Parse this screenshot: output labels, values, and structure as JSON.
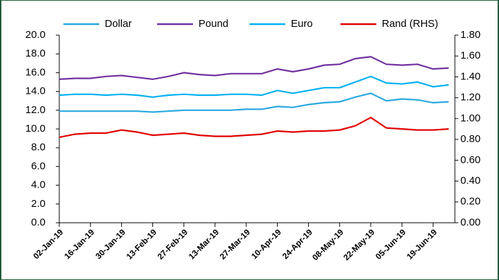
{
  "chart_data": {
    "type": "line",
    "categories": [
      "02-Jan-19",
      null,
      "16-Jan-19",
      null,
      "30-Jan-19",
      null,
      "13-Feb-19",
      null,
      "27-Feb-19",
      null,
      "13-Mar-19",
      null,
      "27-Mar-19",
      null,
      "10-Apr-19",
      null,
      "24-Apr-19",
      null,
      "08-May-19",
      null,
      "22-May-19",
      null,
      "05-Jun-19",
      null,
      "19-Jun-19",
      null
    ],
    "series": [
      {
        "name": "Dollar",
        "color": "#29a8e0",
        "values": [
          11.9,
          11.9,
          11.9,
          11.9,
          11.9,
          11.9,
          11.8,
          11.9,
          12.0,
          12.0,
          12.0,
          12.0,
          12.1,
          12.1,
          12.4,
          12.3,
          12.6,
          12.8,
          12.9,
          13.4,
          13.8,
          13.0,
          13.2,
          13.1,
          12.8,
          12.9
        ]
      },
      {
        "name": "Pound",
        "color": "#7030a0",
        "values": [
          15.3,
          15.4,
          15.4,
          15.6,
          15.7,
          15.5,
          15.3,
          15.6,
          16.0,
          15.8,
          15.7,
          15.9,
          15.9,
          15.9,
          16.4,
          16.1,
          16.4,
          16.8,
          16.9,
          17.5,
          17.7,
          16.9,
          16.8,
          16.9,
          16.4,
          16.5
        ]
      },
      {
        "name": "Euro",
        "color": "#00b0f0",
        "values": [
          13.6,
          13.7,
          13.7,
          13.6,
          13.7,
          13.6,
          13.4,
          13.6,
          13.7,
          13.6,
          13.6,
          13.7,
          13.7,
          13.6,
          14.1,
          13.8,
          14.1,
          14.4,
          14.4,
          15.0,
          15.6,
          14.9,
          14.8,
          15.0,
          14.5,
          14.7
        ]
      },
      {
        "name": "Rand (RHS)",
        "color": "#e00000",
        "axis": "y2",
        "values": [
          0.82,
          0.85,
          0.86,
          0.86,
          0.89,
          0.87,
          0.84,
          0.85,
          0.86,
          0.84,
          0.83,
          0.83,
          0.84,
          0.85,
          0.88,
          0.87,
          0.88,
          0.88,
          0.89,
          0.93,
          1.01,
          0.91,
          0.9,
          0.89,
          0.89,
          0.9
        ]
      }
    ],
    "ylim": [
      0,
      20
    ],
    "yticks": [
      {
        "value": 0,
        "label": "0.0"
      },
      {
        "value": 2,
        "label": "2.0"
      },
      {
        "value": 4,
        "label": "4.0"
      },
      {
        "value": 6,
        "label": "6.0"
      },
      {
        "value": 8,
        "label": "8.0"
      },
      {
        "value": 10,
        "label": "10.0"
      },
      {
        "value": 12,
        "label": "12.0"
      },
      {
        "value": 14,
        "label": "14.0"
      },
      {
        "value": 16,
        "label": "16.0"
      },
      {
        "value": 18,
        "label": "18.0"
      },
      {
        "value": 20,
        "label": "20.0"
      }
    ],
    "y2lim": [
      0,
      1.8
    ],
    "y2ticks": [
      {
        "value": 0,
        "label": "0.00"
      },
      {
        "value": 0.2,
        "label": "0.20"
      },
      {
        "value": 0.4,
        "label": "0.40"
      },
      {
        "value": 0.6,
        "label": "0.60"
      },
      {
        "value": 0.8,
        "label": "0.80"
      },
      {
        "value": 1,
        "label": "1.00"
      },
      {
        "value": 1.2,
        "label": "1.20"
      },
      {
        "value": 1.4,
        "label": "1.40"
      },
      {
        "value": 1.6,
        "label": "1.60"
      },
      {
        "value": 1.8,
        "label": "1.80"
      }
    ],
    "legend": "top"
  }
}
